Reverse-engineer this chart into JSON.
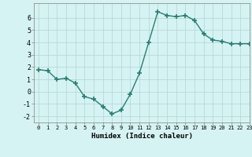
{
  "x": [
    0,
    1,
    2,
    3,
    4,
    5,
    6,
    7,
    8,
    9,
    10,
    11,
    12,
    13,
    14,
    15,
    16,
    17,
    18,
    19,
    20,
    21,
    22,
    23
  ],
  "y": [
    1.8,
    1.7,
    1.0,
    1.1,
    0.7,
    -0.4,
    -0.6,
    -1.2,
    -1.8,
    -1.5,
    -0.2,
    1.5,
    4.0,
    6.5,
    6.2,
    6.1,
    6.2,
    5.8,
    4.7,
    4.2,
    4.1,
    3.9,
    3.9,
    3.9
  ],
  "xlabel": "Humidex (Indice chaleur)",
  "xlim": [
    -0.5,
    23
  ],
  "ylim": [
    -2.5,
    7.2
  ],
  "yticks": [
    -2,
    -1,
    0,
    1,
    2,
    3,
    4,
    5,
    6
  ],
  "xticks": [
    0,
    1,
    2,
    3,
    4,
    5,
    6,
    7,
    8,
    9,
    10,
    11,
    12,
    13,
    14,
    15,
    16,
    17,
    18,
    19,
    20,
    21,
    22,
    23
  ],
  "xtick_labels": [
    "0",
    "1",
    "2",
    "3",
    "4",
    "5",
    "6",
    "7",
    "8",
    "9",
    "10",
    "11",
    "12",
    "13",
    "14",
    "15",
    "16",
    "17",
    "18",
    "19",
    "20",
    "21",
    "22",
    "23"
  ],
  "line_color": "#2a7d72",
  "marker": "+",
  "marker_size": 4,
  "bg_color": "#d6f3f3",
  "grid_color": "#b8d8d8",
  "line_width": 1.0
}
